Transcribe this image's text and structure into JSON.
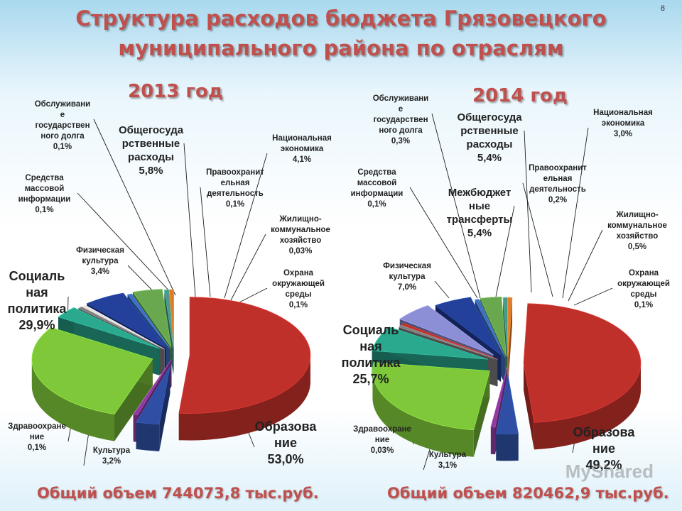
{
  "slide_number": "8",
  "title_line1": "Структура расходов бюджета Грязовецкого",
  "title_line2": "муниципального района по отраслям",
  "watermark": "MyShared",
  "chart_data": [
    {
      "type": "pie",
      "title": "2013 год",
      "total": "Общий объем 744073,8 тыс.руб.",
      "slices": [
        {
          "name": "Образование",
          "label": "Образова\nние",
          "value": 53.0,
          "value_text": "53,0%",
          "color": "#c0302b"
        },
        {
          "name": "Культура",
          "label": "Культура",
          "value": 3.2,
          "value_text": "3,2%",
          "color": "#2e4fa3"
        },
        {
          "name": "Здравоохранение",
          "label": "Здравоохране\nние",
          "value": 0.1,
          "value_text": "0,1%",
          "color": "#8e3b9e"
        },
        {
          "name": "Социальная политика",
          "label": "Социаль\nная\nполитика",
          "value": 29.9,
          "value_text": "29,9%",
          "color": "#7ec83a"
        },
        {
          "name": "Физическая культура",
          "label": "Физическая\nкультура",
          "value": 3.4,
          "value_text": "3,4%",
          "color": "#2aa98f"
        },
        {
          "name": "Средства массовой информации",
          "label": "Средства\nмассовой\nинформации",
          "value": 0.1,
          "value_text": "0,1%",
          "color": "#7f7f7f"
        },
        {
          "name": "Обслуживание государственного долга",
          "label": "Обслуживани\nе\nгосударствен\nного долга",
          "value": 0.1,
          "value_text": "0,1%",
          "color": "#e4e4e4"
        },
        {
          "name": "Общегосударственные расходы",
          "label": "Общегосуда\nрственные\nрасходы",
          "value": 5.8,
          "value_text": "5,8%",
          "color": "#23409a"
        },
        {
          "name": "Правоохранительная деятельность",
          "label": "Правоохранит\nельная\nдеятельность",
          "value": 0.1,
          "value_text": "0,1%",
          "color": "#3f6fc0"
        },
        {
          "name": "Национальная экономика",
          "label": "Национальная\nэкономика",
          "value": 4.1,
          "value_text": "4,1%",
          "color": "#6aa84f"
        },
        {
          "name": "Жилищно-коммунальное хозяйство",
          "label": "Жилищно-\nкоммунальное\nхозяйство",
          "value": 0.03,
          "value_text": "0,03%",
          "color": "#4a9a8a"
        },
        {
          "name": "Охрана окружающей среды",
          "label": "Охрана\nокружающей\nсреды",
          "value": 0.1,
          "value_text": "0,1%",
          "color": "#e07b2a"
        }
      ]
    },
    {
      "type": "pie",
      "title": "2014 год",
      "total": "Общий объем 820462,9 тыс.руб.",
      "slices": [
        {
          "name": "Образование",
          "label": "Образова\nние",
          "value": 49.2,
          "value_text": "49,2%",
          "color": "#c0302b"
        },
        {
          "name": "Культура",
          "label": "Культура",
          "value": 3.1,
          "value_text": "3,1%",
          "color": "#2e4fa3"
        },
        {
          "name": "Здравоохранение",
          "label": "Здравоохране\nние",
          "value": 0.03,
          "value_text": "0,03%",
          "color": "#8e3b9e"
        },
        {
          "name": "Социальная политика",
          "label": "Социаль\nная\nполитика",
          "value": 25.7,
          "value_text": "25,7%",
          "color": "#7ec83a"
        },
        {
          "name": "Физическая культура",
          "label": "Физическая\nкультура",
          "value": 7.0,
          "value_text": "7,0%",
          "color": "#2aa98f"
        },
        {
          "name": "Средства массовой информации",
          "label": "Средства\nмассовой\nинформации",
          "value": 0.1,
          "value_text": "0,1%",
          "color": "#7f7f7f"
        },
        {
          "name": "Обслуживание государственного долга",
          "label": "Обслуживани\nе\nгосударствен\nного долга",
          "value": 0.3,
          "value_text": "0,3%",
          "color": "#c0302b"
        },
        {
          "name": "Межбюджетные трансферты",
          "label": "Межбюджет\nные\nтрансферты",
          "value": 5.4,
          "value_text": "5,4%",
          "color": "#8d8fd6"
        },
        {
          "name": "Общегосударственные расходы",
          "label": "Общегосуда\nрственные\nрасходы",
          "value": 5.4,
          "value_text": "5,4%",
          "color": "#23409a"
        },
        {
          "name": "Правоохранительная деятельность",
          "label": "Правоохранит\nельная\nдеятельность",
          "value": 0.2,
          "value_text": "0,2%",
          "color": "#3f6fc0"
        },
        {
          "name": "Национальная экономика",
          "label": "Национальная\nэкономика",
          "value": 3.0,
          "value_text": "3,0%",
          "color": "#6aa84f"
        },
        {
          "name": "Жилищно-коммунальное хозяйство",
          "label": "Жилищно-\nкоммунальное\nхозяйство",
          "value": 0.5,
          "value_text": "0,5%",
          "color": "#4a9a8a"
        },
        {
          "name": "Охрана окружающей среды",
          "label": "Охрана\nокружающей\nсреды",
          "value": 0.1,
          "value_text": "0,1%",
          "color": "#e07b2a"
        }
      ]
    }
  ]
}
